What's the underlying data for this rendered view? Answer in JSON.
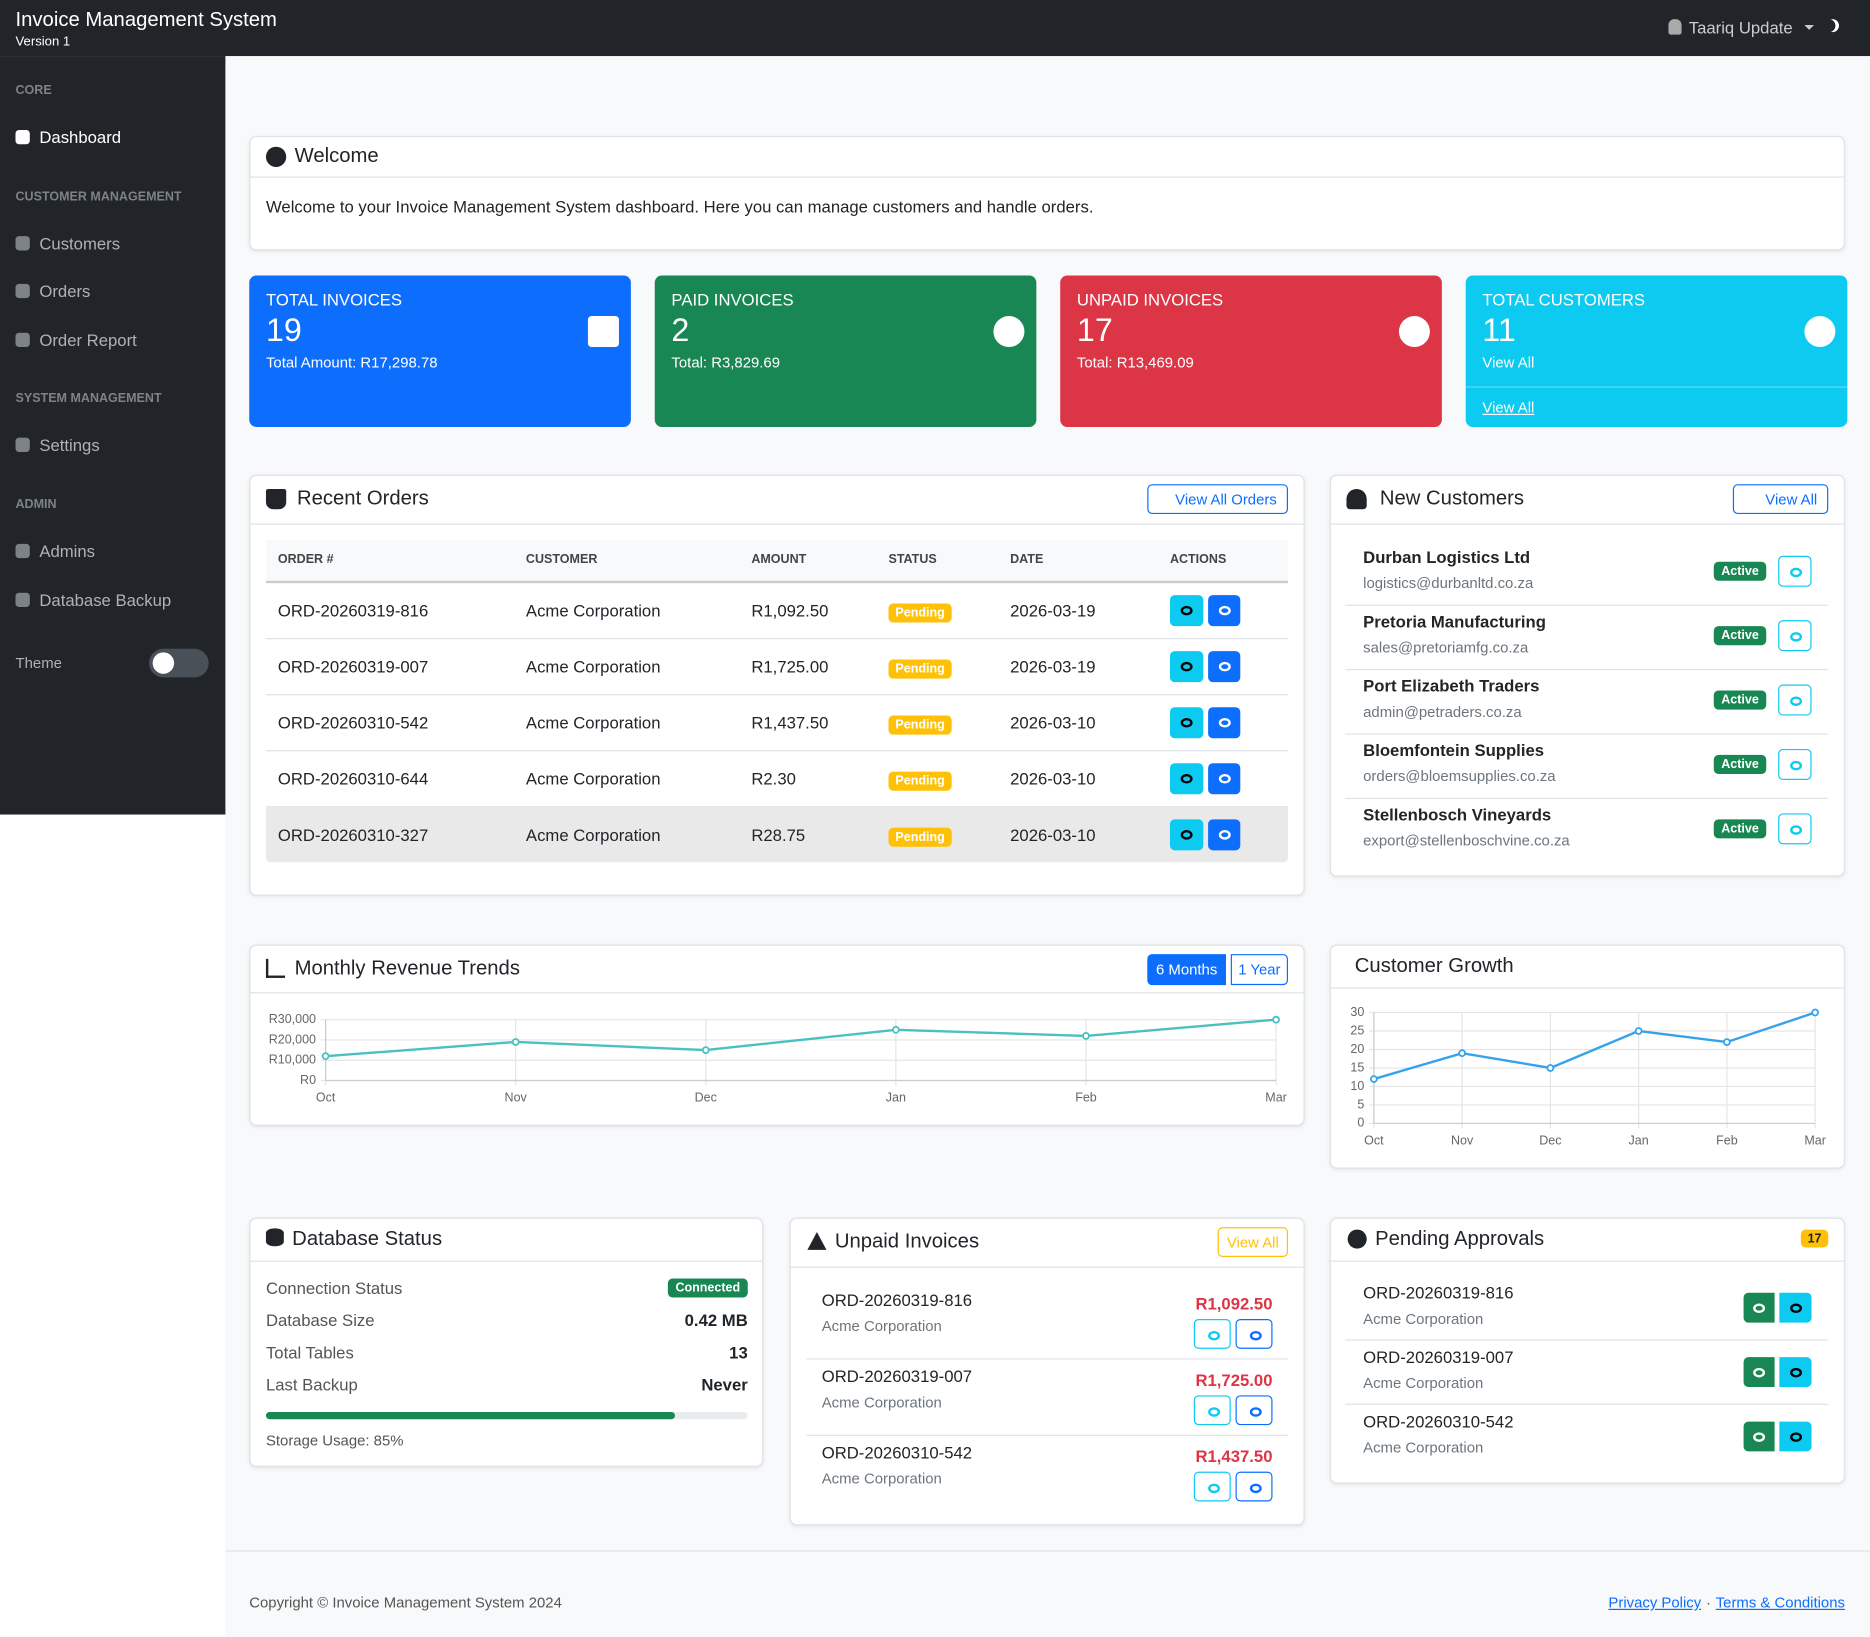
{
  "header": {
    "title": "Invoice Management System",
    "version": "Version 1",
    "user": "Taariq Update"
  },
  "sidebar": {
    "sections": [
      {
        "heading": "CORE",
        "items": [
          "Dashboard"
        ]
      },
      {
        "heading": "CUSTOMER MANAGEMENT",
        "items": [
          "Customers",
          "Orders",
          "Order Report"
        ]
      },
      {
        "heading": "SYSTEM MANAGEMENT",
        "items": [
          "Settings"
        ]
      },
      {
        "heading": "ADMIN",
        "items": [
          "Admins",
          "Database Backup"
        ]
      }
    ],
    "theme_label": "Theme"
  },
  "welcome": {
    "title": "Welcome",
    "text": "Welcome to your Invoice Management System dashboard. Here you can manage customers and handle orders."
  },
  "stats": [
    {
      "title": "TOTAL INVOICES",
      "value": "19",
      "subtitle": "Total Amount: R17,298.78",
      "color": "#0d6efd"
    },
    {
      "title": "PAID INVOICES",
      "value": "2",
      "subtitle": "Total: R3,829.69",
      "color": "#198754"
    },
    {
      "title": "UNPAID INVOICES",
      "value": "17",
      "subtitle": "Total: R13,469.09",
      "color": "#dc3545"
    },
    {
      "title": "TOTAL CUSTOMERS",
      "value": "11",
      "subtitle": "View All",
      "color": "#0dcaf0",
      "link": "View All"
    }
  ],
  "recent_orders": {
    "title": "Recent Orders",
    "button": "View All Orders",
    "columns": [
      "ORDER #",
      "CUSTOMER",
      "AMOUNT",
      "STATUS",
      "DATE",
      "ACTIONS"
    ],
    "rows": [
      [
        "ORD-20260319-816",
        "Acme Corporation",
        "R1,092.50",
        "Pending",
        "2026-03-19"
      ],
      [
        "ORD-20260319-007",
        "Acme Corporation",
        "R1,725.00",
        "Pending",
        "2026-03-19"
      ],
      [
        "ORD-20260310-542",
        "Acme Corporation",
        "R1,437.50",
        "Pending",
        "2026-03-10"
      ],
      [
        "ORD-20260310-644",
        "Acme Corporation",
        "R2.30",
        "Pending",
        "2026-03-10"
      ],
      [
        "ORD-20260310-327",
        "Acme Corporation",
        "R28.75",
        "Pending",
        "2026-03-10"
      ]
    ]
  },
  "new_customers": {
    "title": "New Customers",
    "button": "View All",
    "rows": [
      {
        "name": "Durban Logistics Ltd",
        "email": "logistics@durbanltd.co.za",
        "status": "Active"
      },
      {
        "name": "Pretoria Manufacturing",
        "email": "sales@pretoriamfg.co.za",
        "status": "Active"
      },
      {
        "name": "Port Elizabeth Traders",
        "email": "admin@petraders.co.za",
        "status": "Active"
      },
      {
        "name": "Bloemfontein Supplies",
        "email": "orders@bloemsupplies.co.za",
        "status": "Active"
      },
      {
        "name": "Stellenbosch Vineyards",
        "email": "export@stellenboschvine.co.za",
        "status": "Active"
      }
    ]
  },
  "revenue_controls": [
    "6 Months",
    "1 Year"
  ],
  "chart_data": [
    {
      "type": "line",
      "title": "Monthly Revenue Trends",
      "categories": [
        "Oct",
        "Nov",
        "Dec",
        "Jan",
        "Feb",
        "Mar"
      ],
      "values": [
        12000,
        19000,
        15000,
        25000,
        22000,
        30000
      ],
      "color": "#4bc0c0",
      "ylim": [
        0,
        30000
      ],
      "yticks": [
        {
          "value": 0,
          "label": "R0"
        },
        {
          "value": 10000,
          "label": "R10,000"
        },
        {
          "value": 20000,
          "label": "R20,000"
        },
        {
          "value": 30000,
          "label": "R30,000"
        }
      ],
      "grid": true
    },
    {
      "type": "line",
      "title": "Customer Growth",
      "categories": [
        "Oct",
        "Nov",
        "Dec",
        "Jan",
        "Feb",
        "Mar"
      ],
      "values": [
        12,
        19,
        15,
        25,
        22,
        30
      ],
      "color": "#36a2eb",
      "ylim": [
        0,
        30
      ],
      "yticks": [
        0,
        5,
        10,
        15,
        20,
        25,
        30
      ],
      "grid": true
    }
  ],
  "database_status": {
    "title": "Database Status",
    "rows": [
      [
        "Connection Status",
        "Connected"
      ],
      [
        "Database Size",
        "0.42 MB"
      ],
      [
        "Total Tables",
        "13"
      ],
      [
        "Last Backup",
        "Never"
      ]
    ],
    "usage": 85,
    "usage_label": "Storage Usage: 85%"
  },
  "unpaid_invoices": {
    "title": "Unpaid Invoices",
    "button": "View All",
    "items": [
      {
        "order": "ORD-20260319-816",
        "customer": "Acme Corporation",
        "amount": "R1,092.50"
      },
      {
        "order": "ORD-20260319-007",
        "customer": "Acme Corporation",
        "amount": "R1,725.00"
      },
      {
        "order": "ORD-20260310-542",
        "customer": "Acme Corporation",
        "amount": "R1,437.50"
      }
    ]
  },
  "pending_approvals": {
    "title": "Pending Approvals",
    "count": "17",
    "items": [
      {
        "order": "ORD-20260319-816",
        "customer": "Acme Corporation"
      },
      {
        "order": "ORD-20260319-007",
        "customer": "Acme Corporation"
      },
      {
        "order": "ORD-20260310-542",
        "customer": "Acme Corporation"
      }
    ]
  },
  "footer": {
    "copyright": "Copyright © Invoice Management System 2024",
    "links": [
      "Privacy Policy",
      "Terms & Conditions"
    ],
    "separator": "·"
  }
}
